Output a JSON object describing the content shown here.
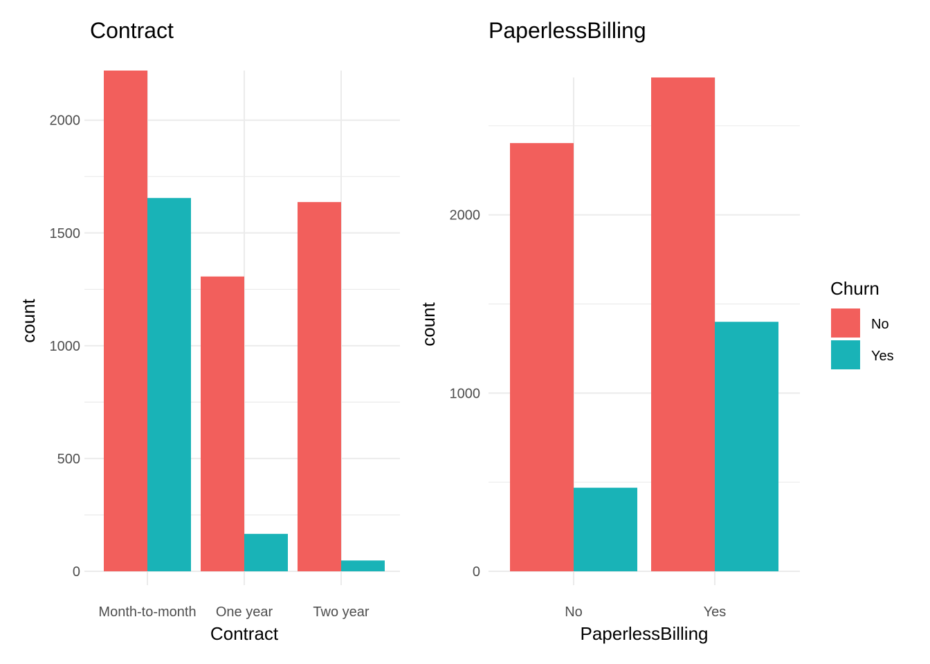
{
  "chart_data": [
    {
      "type": "bar",
      "title": "Contract",
      "xlabel": "Contract",
      "ylabel": "count",
      "categories": [
        "Month-to-month",
        "One year",
        "Two year"
      ],
      "series": [
        {
          "name": "No",
          "values": [
            2220,
            1307,
            1637
          ]
        },
        {
          "name": "Yes",
          "values": [
            1655,
            166,
            48
          ]
        }
      ],
      "ylim": [
        0,
        2220
      ],
      "yticks": [
        0,
        500,
        1000,
        1500,
        2000
      ],
      "grid": true
    },
    {
      "type": "bar",
      "title": "PaperlessBilling",
      "xlabel": "PaperlessBilling",
      "ylabel": "count",
      "categories": [
        "No",
        "Yes"
      ],
      "series": [
        {
          "name": "No",
          "values": [
            2403,
            2771
          ]
        },
        {
          "name": "Yes",
          "values": [
            469,
            1400
          ]
        }
      ],
      "ylim": [
        0,
        2771
      ],
      "yticks": [
        0,
        1000,
        2000
      ],
      "grid": true
    }
  ],
  "legend": {
    "title": "Churn",
    "placement": "right",
    "items": [
      {
        "label": "No",
        "color": "#F8766D"
      },
      {
        "label": "Yes",
        "color": "#00BFC4"
      }
    ]
  },
  "colors": {
    "No": "#F25F5C",
    "Yes": "#19B3B7"
  }
}
